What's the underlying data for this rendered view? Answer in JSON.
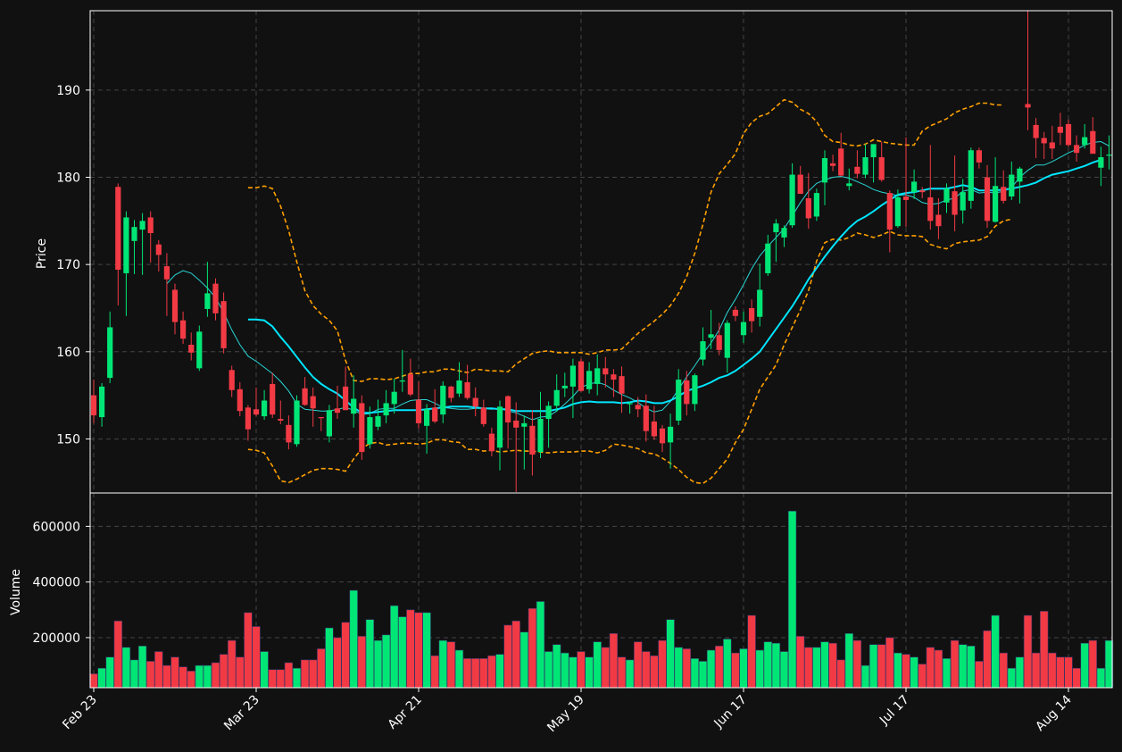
{
  "chart_data": {
    "type": "candlestick",
    "theme": {
      "background": "#111111",
      "grid": "#444444",
      "up": "#00e676",
      "down": "#f23a45",
      "sma_short": "#29d6d6",
      "sma_long": "#00e5ff",
      "bollinger": "#ffa000",
      "frame": "#ffffff"
    },
    "price_panel": {
      "ylabel": "Price",
      "ylim": [
        143.8,
        199.1
      ],
      "yticks": [
        150,
        160,
        170,
        180,
        190
      ],
      "grid": true
    },
    "volume_panel": {
      "ylabel": "Volume",
      "ylim": [
        20000,
        720000
      ],
      "yticks": [
        200000,
        400000,
        600000
      ],
      "grid": true
    },
    "x_ticks": [
      {
        "index": 0,
        "label": "Feb 23"
      },
      {
        "index": 20,
        "label": "Mar 23"
      },
      {
        "index": 40,
        "label": "Apr 21"
      },
      {
        "index": 60,
        "label": "May 19"
      },
      {
        "index": 80,
        "label": "Jun 17"
      },
      {
        "index": 100,
        "label": "Jul 17"
      },
      {
        "index": 120,
        "label": "Aug 14"
      }
    ],
    "ohlc": [
      [
        155.0,
        156.8,
        151.8,
        152.7
      ],
      [
        152.5,
        156.4,
        151.4,
        156.0
      ],
      [
        157.0,
        164.6,
        156.4,
        162.8
      ],
      [
        178.9,
        179.3,
        165.3,
        169.4
      ],
      [
        169.0,
        176.1,
        164.1,
        175.4
      ],
      [
        172.7,
        175.1,
        168.9,
        174.3
      ],
      [
        174.0,
        175.9,
        168.8,
        175.0
      ],
      [
        175.4,
        176.1,
        170.2,
        173.6
      ],
      [
        172.3,
        172.8,
        169.2,
        171.1
      ],
      [
        169.8,
        171.3,
        164.1,
        168.3
      ],
      [
        167.1,
        167.8,
        162.0,
        163.4
      ],
      [
        163.6,
        164.6,
        160.9,
        161.5
      ],
      [
        160.8,
        162.2,
        159.0,
        159.9
      ],
      [
        158.1,
        163.0,
        157.8,
        162.3
      ],
      [
        164.9,
        170.3,
        164.0,
        166.7
      ],
      [
        167.8,
        168.4,
        163.6,
        164.4
      ],
      [
        165.8,
        166.8,
        159.8,
        160.4
      ],
      [
        157.9,
        158.4,
        154.8,
        155.6
      ],
      [
        155.7,
        156.5,
        152.6,
        153.2
      ],
      [
        153.6,
        153.9,
        149.8,
        151.1
      ],
      [
        153.4,
        155.9,
        152.6,
        152.8
      ],
      [
        152.6,
        155.6,
        152.2,
        154.4
      ],
      [
        156.3,
        157.6,
        152.4,
        152.8
      ],
      [
        152.3,
        154.4,
        151.7,
        152.1
      ],
      [
        151.6,
        152.7,
        148.8,
        149.6
      ],
      [
        149.4,
        155.0,
        149.1,
        154.4
      ],
      [
        155.8,
        157.1,
        153.8,
        153.9
      ],
      [
        154.9,
        155.9,
        151.4,
        153.5
      ],
      [
        152.5,
        152.5,
        150.9,
        152.4
      ],
      [
        150.3,
        153.9,
        149.6,
        153.3
      ],
      [
        153.5,
        156.1,
        152.3,
        153.0
      ],
      [
        156.0,
        158.3,
        153.5,
        153.3
      ],
      [
        152.9,
        157.3,
        151.3,
        154.6
      ],
      [
        154.1,
        155.0,
        147.6,
        148.5
      ],
      [
        149.4,
        153.7,
        148.9,
        152.5
      ],
      [
        151.4,
        154.5,
        151.0,
        152.6
      ],
      [
        152.7,
        155.6,
        151.8,
        154.1
      ],
      [
        154.0,
        156.9,
        152.9,
        155.4
      ],
      [
        156.6,
        160.2,
        155.4,
        156.7
      ],
      [
        157.4,
        159.2,
        154.9,
        155.1
      ],
      [
        154.5,
        156.6,
        151.2,
        151.8
      ],
      [
        151.5,
        154.0,
        148.3,
        153.4
      ],
      [
        153.6,
        155.7,
        151.8,
        152.0
      ],
      [
        152.8,
        156.6,
        151.8,
        156.1
      ],
      [
        156.0,
        156.1,
        154.2,
        154.7
      ],
      [
        155.2,
        158.8,
        154.8,
        156.7
      ],
      [
        156.5,
        158.5,
        154.5,
        154.7
      ],
      [
        154.7,
        155.9,
        152.6,
        153.7
      ],
      [
        153.6,
        154.5,
        151.4,
        151.7
      ],
      [
        150.6,
        151.3,
        148.0,
        148.6
      ],
      [
        149.0,
        154.4,
        146.4,
        153.7
      ],
      [
        154.9,
        155.0,
        148.9,
        151.9
      ],
      [
        152.1,
        154.2,
        143.9,
        151.3
      ],
      [
        151.4,
        152.7,
        146.5,
        151.8
      ],
      [
        151.5,
        153.3,
        145.8,
        148.2
      ],
      [
        148.5,
        155.4,
        147.8,
        152.3
      ],
      [
        152.3,
        154.3,
        149.0,
        153.8
      ],
      [
        153.8,
        157.4,
        153.1,
        155.6
      ],
      [
        155.8,
        157.6,
        154.8,
        156.1
      ],
      [
        156.0,
        159.2,
        152.4,
        158.4
      ],
      [
        158.9,
        159.2,
        155.4,
        155.5
      ],
      [
        155.7,
        158.8,
        155.2,
        157.8
      ],
      [
        156.3,
        159.7,
        155.0,
        158.1
      ],
      [
        158.1,
        159.4,
        155.9,
        157.4
      ],
      [
        157.4,
        158.0,
        154.8,
        156.8
      ],
      [
        157.2,
        158.3,
        153.0,
        155.2
      ],
      [
        154.0,
        154.3,
        152.9,
        154.1
      ],
      [
        153.9,
        154.8,
        152.5,
        153.4
      ],
      [
        153.8,
        155.1,
        149.7,
        150.9
      ],
      [
        152.0,
        153.8,
        149.9,
        150.3
      ],
      [
        151.2,
        151.6,
        148.5,
        149.5
      ],
      [
        149.6,
        152.9,
        146.6,
        151.4
      ],
      [
        152.1,
        158.0,
        151.6,
        156.8
      ],
      [
        156.7,
        157.8,
        152.7,
        154.0
      ],
      [
        154.0,
        157.5,
        153.2,
        157.3
      ],
      [
        159.1,
        162.8,
        158.4,
        161.2
      ],
      [
        161.6,
        164.8,
        160.3,
        162.0
      ],
      [
        161.9,
        163.3,
        159.6,
        160.2
      ],
      [
        159.3,
        163.6,
        157.6,
        163.3
      ],
      [
        164.8,
        165.2,
        163.5,
        164.1
      ],
      [
        161.9,
        164.6,
        161.0,
        163.4
      ],
      [
        165.0,
        166.0,
        162.2,
        163.5
      ],
      [
        164.0,
        170.1,
        162.9,
        167.1
      ],
      [
        169.0,
        173.4,
        168.7,
        172.4
      ],
      [
        173.7,
        175.2,
        170.3,
        174.7
      ],
      [
        173.1,
        174.5,
        172.0,
        174.2
      ],
      [
        174.5,
        181.6,
        174.2,
        180.3
      ],
      [
        180.3,
        181.3,
        178.1,
        178.1
      ],
      [
        177.6,
        180.5,
        174.1,
        175.3
      ],
      [
        175.5,
        178.7,
        175.0,
        178.2
      ],
      [
        179.4,
        183.1,
        176.8,
        182.2
      ],
      [
        181.6,
        182.6,
        180.7,
        181.3
      ],
      [
        183.3,
        185.1,
        180.1,
        180.2
      ],
      [
        179.0,
        181.0,
        178.5,
        179.3
      ],
      [
        181.2,
        183.1,
        179.9,
        180.4
      ],
      [
        180.3,
        183.8,
        179.9,
        182.3
      ],
      [
        182.3,
        183.8,
        179.4,
        183.8
      ],
      [
        182.3,
        184.1,
        179.5,
        179.7
      ],
      [
        178.2,
        178.5,
        171.4,
        174.0
      ],
      [
        174.4,
        178.6,
        174.2,
        177.7
      ],
      [
        177.8,
        184.6,
        174.3,
        177.4
      ],
      [
        178.3,
        180.9,
        177.5,
        179.5
      ],
      [
        178.5,
        178.9,
        177.6,
        178.3
      ],
      [
        177.7,
        183.7,
        174.0,
        175.0
      ],
      [
        175.7,
        177.6,
        172.9,
        174.4
      ],
      [
        177.1,
        179.3,
        175.9,
        178.7
      ],
      [
        178.4,
        182.5,
        173.8,
        175.7
      ],
      [
        176.2,
        179.8,
        174.7,
        178.3
      ],
      [
        177.3,
        183.4,
        176.4,
        183.1
      ],
      [
        183.1,
        183.4,
        181.0,
        181.7
      ],
      [
        180.0,
        181.4,
        174.2,
        175.0
      ],
      [
        174.9,
        182.3,
        174.8,
        179.0
      ],
      [
        178.9,
        180.8,
        177.0,
        177.3
      ],
      [
        177.8,
        181.8,
        177.4,
        180.3
      ],
      [
        179.5,
        181.2,
        177.0,
        181.0
      ],
      [
        188.4,
        199.1,
        185.4,
        188.0
      ],
      [
        186.0,
        186.8,
        182.2,
        184.5
      ],
      [
        184.5,
        185.2,
        182.1,
        183.9
      ],
      [
        184.0,
        185.9,
        182.1,
        183.3
      ],
      [
        185.8,
        187.4,
        183.7,
        185.1
      ],
      [
        186.1,
        186.6,
        183.5,
        183.7
      ],
      [
        183.7,
        184.8,
        181.8,
        182.8
      ],
      [
        183.7,
        186.1,
        183.3,
        184.6
      ],
      [
        185.3,
        186.9,
        182.7,
        182.7
      ],
      [
        181.1,
        183.5,
        179.0,
        182.3
      ],
      [
        182.5,
        184.8,
        180.9,
        182.6
      ]
    ],
    "volume": [
      70000,
      90000,
      130000,
      260000,
      165000,
      120000,
      170000,
      115000,
      150000,
      100000,
      130000,
      95000,
      80000,
      100000,
      100000,
      110000,
      140000,
      190000,
      130000,
      290000,
      240000,
      150000,
      85000,
      85000,
      110000,
      90000,
      120000,
      120000,
      160000,
      235000,
      200000,
      255000,
      370000,
      205000,
      265000,
      190000,
      210000,
      315000,
      275000,
      300000,
      290000,
      290000,
      135000,
      190000,
      185000,
      155000,
      125000,
      125000,
      125000,
      135000,
      140000,
      245000,
      260000,
      220000,
      305000,
      330000,
      150000,
      175000,
      145000,
      130000,
      150000,
      130000,
      185000,
      165000,
      215000,
      130000,
      120000,
      185000,
      150000,
      135000,
      190000,
      265000,
      165000,
      160000,
      125000,
      115000,
      155000,
      170000,
      195000,
      145000,
      160000,
      280000,
      155000,
      185000,
      180000,
      150000,
      655000,
      205000,
      165000,
      165000,
      185000,
      180000,
      120000,
      215000,
      190000,
      100000,
      175000,
      175000,
      200000,
      145000,
      140000,
      130000,
      105000,
      165000,
      155000,
      125000,
      190000,
      175000,
      170000,
      115000,
      225000,
      280000,
      145000,
      90000,
      130000,
      280000,
      145000,
      295000,
      145000,
      130000,
      130000,
      90000,
      180000,
      190000,
      90000,
      190000
    ],
    "sma_short": [
      null,
      null,
      null,
      null,
      null,
      null,
      null,
      null,
      null,
      167.8,
      168.8,
      169.3,
      169.0,
      168.2,
      167.3,
      166.2,
      164.5,
      162.5,
      160.8,
      159.5,
      158.9,
      158.2,
      157.5,
      156.6,
      155.5,
      154.0,
      153.4,
      153.3,
      153.2,
      153.2,
      153.4,
      153.6,
      153.3,
      152.8,
      152.9,
      153.4,
      153.5,
      153.5,
      154.0,
      154.4,
      154.5,
      154.5,
      154.1,
      153.6,
      153.5,
      153.4,
      153.4,
      153.5,
      153.5,
      153.4,
      153.5,
      153.2,
      153.0,
      152.6,
      152.2,
      152.5,
      152.6,
      153.2,
      154.0,
      154.9,
      155.9,
      156.3,
      156.5,
      156.2,
      155.6,
      155.1,
      154.7,
      154.2,
      153.5,
      153.1,
      153.3,
      154.3,
      155.7,
      157.1,
      158.4,
      159.8,
      161.0,
      162.5,
      164.5,
      166.0,
      167.7,
      169.5,
      171.0,
      172.1,
      173.1,
      174.1,
      175.6,
      177.1,
      178.4,
      179.3,
      179.7,
      180.0,
      180.1,
      179.9,
      179.5,
      179.1,
      178.6,
      178.3,
      178.1,
      177.9,
      178.0,
      177.7,
      177.1,
      176.9,
      177.0,
      177.4,
      177.6,
      178.4,
      178.6,
      178.2,
      178.3,
      178.2,
      178.4,
      178.8,
      180.0,
      180.8,
      181.4,
      181.4,
      181.8,
      182.3,
      182.8,
      183.2,
      183.7,
      184.0,
      184.1,
      183.6
    ],
    "sma_long": [
      null,
      null,
      null,
      null,
      null,
      null,
      null,
      null,
      null,
      null,
      null,
      null,
      null,
      null,
      null,
      null,
      null,
      null,
      null,
      163.7,
      163.7,
      163.6,
      162.9,
      161.7,
      160.6,
      159.4,
      158.2,
      157.1,
      156.3,
      155.7,
      155.2,
      154.4,
      153.6,
      153.0,
      153.0,
      153.1,
      153.2,
      153.3,
      153.3,
      153.3,
      153.3,
      153.4,
      153.5,
      153.6,
      153.7,
      153.7,
      153.7,
      153.6,
      153.5,
      153.5,
      153.4,
      153.4,
      153.2,
      153.2,
      153.2,
      153.2,
      153.2,
      153.4,
      153.6,
      154.0,
      154.2,
      154.3,
      154.2,
      154.2,
      154.2,
      154.1,
      154.2,
      154.4,
      154.3,
      154.1,
      154.1,
      154.4,
      154.9,
      155.5,
      155.8,
      156.1,
      156.5,
      157.0,
      157.3,
      157.8,
      158.5,
      159.2,
      160.0,
      161.3,
      162.6,
      163.9,
      165.2,
      166.7,
      168.3,
      169.6,
      170.9,
      172.1,
      173.2,
      174.2,
      175.0,
      175.5,
      176.1,
      176.8,
      177.4,
      178.0,
      178.2,
      178.3,
      178.5,
      178.7,
      178.7,
      178.7,
      178.9,
      179.1,
      178.9,
      178.5,
      178.5,
      178.5,
      178.6,
      178.7,
      178.9,
      179.1,
      179.4,
      179.9,
      180.3,
      180.5,
      180.7,
      181.0,
      181.3,
      181.7,
      182.0
    ],
    "bb_upper": [
      null,
      null,
      null,
      null,
      null,
      null,
      null,
      null,
      null,
      null,
      null,
      null,
      null,
      null,
      null,
      null,
      null,
      null,
      null,
      178.8,
      178.8,
      179.0,
      178.7,
      176.7,
      173.9,
      170.3,
      167.0,
      165.3,
      164.3,
      163.6,
      162.4,
      159.0,
      156.7,
      156.6,
      156.9,
      156.9,
      156.8,
      156.9,
      157.2,
      157.5,
      157.5,
      157.7,
      157.7,
      158.0,
      158.0,
      157.8,
      157.6,
      158.0,
      157.9,
      157.8,
      157.8,
      157.7,
      158.6,
      159.2,
      159.8,
      160.0,
      160.1,
      159.9,
      159.9,
      159.9,
      159.9,
      159.7,
      159.9,
      160.2,
      160.2,
      160.3,
      161.2,
      162.1,
      162.8,
      163.5,
      164.3,
      165.3,
      166.7,
      168.6,
      171.3,
      174.6,
      178.3,
      180.4,
      181.5,
      182.7,
      185.0,
      186.3,
      187.0,
      187.3,
      188.1,
      188.9,
      188.6,
      187.8,
      187.3,
      186.4,
      184.8,
      184.1,
      184.0,
      183.7,
      183.6,
      183.8,
      184.3,
      184.1,
      183.9,
      183.8,
      183.7,
      183.7,
      185.3,
      185.9,
      186.3,
      186.7,
      187.4,
      187.8,
      188.1,
      188.5,
      188.5,
      188.3,
      188.3
    ],
    "bb_lower": [
      null,
      null,
      null,
      null,
      null,
      null,
      null,
      null,
      null,
      null,
      null,
      null,
      null,
      null,
      null,
      null,
      null,
      null,
      null,
      148.8,
      148.7,
      148.4,
      146.9,
      145.2,
      145.0,
      145.4,
      145.9,
      146.4,
      146.6,
      146.6,
      146.5,
      146.3,
      147.7,
      148.9,
      149.5,
      149.6,
      149.3,
      149.4,
      149.5,
      149.5,
      149.4,
      149.5,
      149.9,
      149.9,
      149.7,
      149.6,
      148.8,
      148.8,
      148.6,
      148.7,
      148.5,
      148.6,
      148.7,
      148.6,
      148.6,
      148.5,
      148.4,
      148.5,
      148.5,
      148.5,
      148.6,
      148.6,
      148.4,
      148.7,
      149.4,
      149.3,
      149.1,
      148.9,
      148.4,
      148.3,
      147.8,
      147.2,
      146.5,
      145.6,
      145.0,
      144.9,
      145.5,
      146.6,
      147.7,
      149.6,
      151.1,
      153.4,
      155.7,
      157.1,
      158.5,
      160.8,
      162.8,
      164.8,
      167.0,
      170.4,
      172.5,
      172.9,
      172.8,
      173.1,
      173.6,
      173.4,
      173.1,
      173.4,
      173.8,
      173.4,
      173.3,
      173.3,
      173.2,
      172.3,
      172.0,
      171.8,
      172.4,
      172.6,
      172.7,
      172.8,
      173.2,
      174.4,
      175.0,
      175.2
    ]
  }
}
